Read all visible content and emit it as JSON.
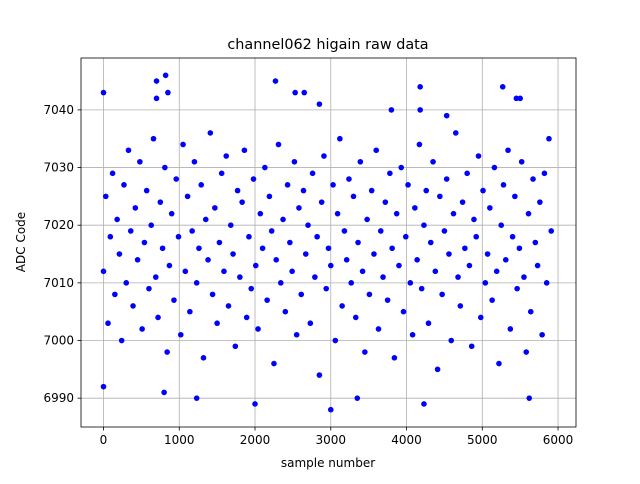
{
  "chart_data": {
    "type": "scatter",
    "title": "channel062 higain raw data",
    "xlabel": "sample number",
    "ylabel": "ADC Code",
    "color": "#0000ff",
    "grid": true,
    "xlim": [
      -297,
      6237
    ],
    "ylim": [
      6985,
      7049
    ],
    "xticks": [
      0,
      1000,
      2000,
      3000,
      4000,
      5000,
      6000
    ],
    "yticks": [
      6990,
      7000,
      7010,
      7020,
      7030,
      7040
    ],
    "x": [
      0,
      30,
      60,
      90,
      120,
      150,
      180,
      210,
      240,
      270,
      300,
      330,
      360,
      390,
      420,
      450,
      480,
      510,
      540,
      570,
      600,
      630,
      660,
      690,
      720,
      750,
      780,
      810,
      840,
      870,
      900,
      930,
      960,
      990,
      1020,
      1050,
      1080,
      1110,
      1140,
      1170,
      1200,
      1230,
      1260,
      1290,
      1320,
      1350,
      1380,
      1410,
      1440,
      1470,
      1500,
      1530,
      1560,
      1590,
      1620,
      1650,
      1680,
      1710,
      1740,
      1770,
      1800,
      1830,
      1860,
      1890,
      1920,
      1950,
      1980,
      2010,
      2040,
      2070,
      2100,
      2130,
      2160,
      2190,
      2220,
      2250,
      2280,
      2310,
      2340,
      2370,
      2400,
      2430,
      2460,
      2490,
      2520,
      2550,
      2580,
      2610,
      2640,
      2670,
      2700,
      2730,
      2760,
      2790,
      2820,
      2850,
      2880,
      2910,
      2940,
      2970,
      3000,
      3030,
      3060,
      3090,
      3120,
      3150,
      3180,
      3210,
      3240,
      3270,
      3300,
      3330,
      3360,
      3390,
      3420,
      3450,
      3480,
      3510,
      3540,
      3570,
      3600,
      3630,
      3660,
      3690,
      3720,
      3750,
      3780,
      3810,
      3840,
      3870,
      3900,
      3930,
      3960,
      3990,
      4020,
      4050,
      4080,
      4110,
      4140,
      4170,
      4200,
      4230,
      4260,
      4290,
      4320,
      4350,
      4380,
      4410,
      4440,
      4470,
      4500,
      4530,
      4560,
      4590,
      4620,
      4650,
      4680,
      4710,
      4740,
      4770,
      4800,
      4830,
      4860,
      4890,
      4920,
      4950,
      4980,
      5010,
      5040,
      5070,
      5100,
      5130,
      5160,
      5190,
      5220,
      5250,
      5280,
      5310,
      5340,
      5370,
      5400,
      5430,
      5460,
      5490,
      5520,
      5550,
      5580,
      5610,
      5640,
      5670,
      5700,
      5730,
      5760,
      5790,
      5820,
      5850,
      5880,
      5910,
      0,
      0,
      700,
      820,
      700,
      850,
      2270,
      2530,
      2650,
      2850,
      3800,
      4180,
      4180,
      5270,
      5450,
      5500,
      2000,
      3000,
      1230,
      4230,
      5620,
      4530,
      800,
      3350
    ],
    "values": [
      7012,
      7025,
      7003,
      7018,
      7029,
      7008,
      7021,
      7015,
      7000,
      7027,
      7010,
      7033,
      7019,
      7006,
      7023,
      7014,
      7031,
      7002,
      7017,
      7026,
      7009,
      7020,
      7035,
      7011,
      7004,
      7024,
      7016,
      7030,
      6998,
      7013,
      7022,
      7007,
      7028,
      7018,
      7001,
      7034,
      7012,
      7025,
      7005,
      7019,
      7031,
      7010,
      7016,
      7027,
      6997,
      7021,
      7014,
      7036,
      7008,
      7023,
      7003,
      7017,
      7029,
      7012,
      7032,
      7006,
      7020,
      7015,
      6999,
      7026,
      7011,
      7024,
      7033,
      7004,
      7018,
      7009,
      7028,
      7013,
      7002,
      7022,
      7016,
      7030,
      7007,
      7025,
      7019,
      6996,
      7014,
      7034,
      7010,
      7021,
      7005,
      7027,
      7017,
      7012,
      7031,
      7001,
      7023,
      7008,
      7026,
      7015,
      7020,
      7003,
      7029,
      7011,
      7018,
      6994,
      7024,
      7032,
      7009,
      7016,
      7013,
      7027,
      7000,
      7022,
      7035,
      7006,
      7019,
      7014,
      7028,
      7010,
      7025,
      7004,
      7017,
      7031,
      7012,
      6998,
      7021,
      7008,
      7026,
      7015,
      7033,
      7002,
      7019,
      7011,
      7024,
      7007,
      7029,
      7016,
      6997,
      7022,
      7013,
      7030,
      7005,
      7018,
      7027,
      7010,
      7001,
      7023,
      7014,
      7034,
      7009,
      7020,
      7026,
      7003,
      7017,
      7031,
      7012,
      6995,
      7025,
      7008,
      7019,
      7028,
      7015,
      7000,
      7022,
      7036,
      7011,
      7006,
      7024,
      7016,
      7029,
      7013,
      6999,
      7021,
      7018,
      7032,
      7004,
      7026,
      7010,
      7015,
      7023,
      7007,
      7030,
      7012,
      6996,
      7020,
      7027,
      7014,
      7033,
      7002,
      7018,
      7025,
      7009,
      7016,
      7031,
      7011,
      6998,
      7022,
      7005,
      7028,
      7017,
      7013,
      7024,
      7001,
      7029,
      7010,
      7035,
      7019,
      7043,
      6992,
      7045,
      7046,
      7042,
      7043,
      7045,
      7043,
      7043,
      7041,
      7040,
      7044,
      7040,
      7044,
      7042,
      7042,
      6989,
      6988,
      6990,
      6989,
      6990,
      7039,
      6991,
      6990
    ]
  }
}
